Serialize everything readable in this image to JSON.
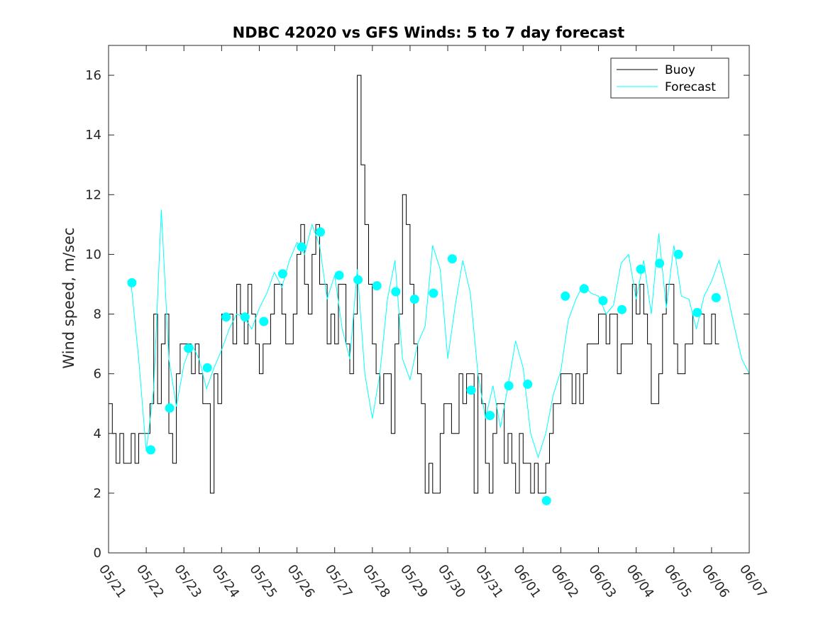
{
  "chart_data": {
    "type": "line",
    "title": "NDBC 42020 vs GFS Winds: 5 to 7 day forecast",
    "xlabel": "",
    "ylabel": "Wind speed, m/sec",
    "ylim": [
      0,
      17
    ],
    "xlim": [
      0,
      17
    ],
    "yticks": [
      0,
      2,
      4,
      6,
      8,
      10,
      12,
      14,
      16
    ],
    "xtick_labels": [
      "05/21",
      "05/22",
      "05/23",
      "05/24",
      "05/25",
      "05/26",
      "05/27",
      "05/28",
      "05/29",
      "05/30",
      "05/31",
      "06/01",
      "06/02",
      "06/03",
      "06/04",
      "06/05",
      "06/06",
      "06/07"
    ],
    "legend_position": "top-right",
    "colors": {
      "buoy": "#000000",
      "forecast": "#00ffff"
    },
    "series": [
      {
        "name": "Buoy",
        "style": "thin black line",
        "x": [
          0.0,
          0.1,
          0.2,
          0.3,
          0.4,
          0.5,
          0.6,
          0.7,
          0.8,
          0.9,
          1.0,
          1.1,
          1.2,
          1.3,
          1.4,
          1.5,
          1.6,
          1.7,
          1.8,
          1.9,
          2.0,
          2.1,
          2.2,
          2.3,
          2.4,
          2.5,
          2.6,
          2.7,
          2.8,
          2.9,
          3.0,
          3.1,
          3.2,
          3.3,
          3.4,
          3.5,
          3.6,
          3.7,
          3.8,
          3.9,
          4.0,
          4.1,
          4.2,
          4.3,
          4.4,
          4.5,
          4.6,
          4.7,
          4.8,
          4.9,
          5.0,
          5.1,
          5.2,
          5.3,
          5.4,
          5.5,
          5.6,
          5.7,
          5.8,
          5.9,
          6.0,
          6.1,
          6.2,
          6.3,
          6.4,
          6.5,
          6.6,
          6.7,
          6.8,
          6.9,
          7.0,
          7.1,
          7.2,
          7.3,
          7.4,
          7.5,
          7.6,
          7.7,
          7.8,
          7.9,
          8.0,
          8.1,
          8.2,
          8.3,
          8.4,
          8.5,
          8.6,
          8.7,
          8.8,
          8.9,
          9.0,
          9.1,
          9.2,
          9.3,
          9.4,
          9.5,
          9.6,
          9.7,
          9.8,
          9.9,
          10.0,
          10.1,
          10.2,
          10.3,
          10.4,
          10.5,
          10.6,
          10.7,
          10.8,
          10.9,
          11.0,
          11.1,
          11.2,
          11.3,
          11.4,
          11.5,
          11.6,
          11.7,
          11.8,
          11.9,
          12.0,
          12.1,
          12.2,
          12.3,
          12.4,
          12.5,
          12.6,
          12.7,
          12.8,
          12.9,
          13.0,
          13.1,
          13.2,
          13.3,
          13.4,
          13.5,
          13.6,
          13.7,
          13.8,
          13.9,
          14.0,
          14.1,
          14.2,
          14.3,
          14.4,
          14.5,
          14.6,
          14.7,
          14.8,
          14.9,
          15.0,
          15.1,
          15.2,
          15.3,
          15.4,
          15.5,
          15.6,
          15.7,
          15.8,
          15.9,
          16.0,
          16.1,
          16.2
        ],
        "y": [
          5,
          4,
          3,
          4,
          3,
          3,
          4,
          3,
          4,
          4,
          4,
          5,
          8,
          5,
          7,
          8,
          4,
          3,
          6,
          7,
          7,
          7,
          6,
          7,
          6,
          5,
          5,
          2,
          6,
          5,
          8,
          8,
          8,
          7,
          9,
          8,
          7,
          9,
          8,
          7,
          6,
          7,
          7,
          8,
          9,
          9,
          8,
          7,
          7,
          8,
          10,
          11,
          9,
          8,
          10,
          11,
          9,
          9,
          7,
          8,
          7,
          9,
          9,
          7,
          6,
          8,
          16,
          13,
          11,
          9,
          7,
          6,
          5,
          6,
          6,
          4,
          7,
          8,
          12,
          11,
          9,
          7,
          6,
          5,
          2,
          3,
          2,
          2,
          4,
          5,
          5,
          4,
          4,
          6,
          5,
          6,
          6,
          2,
          6,
          5,
          3,
          2,
          4,
          5,
          5,
          3,
          4,
          3,
          2,
          4,
          3,
          3,
          2,
          3,
          2,
          2,
          3,
          4,
          5,
          5,
          6,
          6,
          6,
          5,
          6,
          5,
          6,
          7,
          7,
          7,
          8,
          8,
          7,
          8,
          8,
          6,
          7,
          7,
          7,
          9,
          8,
          9,
          8,
          7,
          5,
          5,
          6,
          8,
          9,
          9,
          7,
          6,
          6,
          7,
          7,
          8,
          8,
          8,
          7,
          7,
          8,
          7,
          7
        ]
      },
      {
        "name": "Forecast",
        "style": "thin cyan lines",
        "x": [
          0.6,
          0.8,
          1.0,
          1.2,
          1.4,
          1.6,
          1.8,
          2.0,
          2.2,
          2.4,
          2.6,
          2.8,
          3.0,
          3.2,
          3.4,
          3.6,
          3.8,
          4.0,
          4.2,
          4.4,
          4.6,
          4.8,
          5.0,
          5.2,
          5.4,
          5.6,
          5.8,
          6.0,
          6.2,
          6.4,
          6.6,
          6.8,
          7.0,
          7.2,
          7.4,
          7.6,
          7.8,
          8.0,
          8.2,
          8.4,
          8.6,
          8.8,
          9.0,
          9.2,
          9.4,
          9.6,
          9.8,
          10.0,
          10.2,
          10.4,
          10.6,
          10.8,
          11.0,
          11.2,
          11.4,
          11.6,
          11.8,
          12.0,
          12.2,
          12.4,
          12.6,
          12.8,
          13.0,
          13.2,
          13.4,
          13.6,
          13.8,
          14.0,
          14.2,
          14.4,
          14.6,
          14.8,
          15.0,
          15.2,
          15.4,
          15.6,
          15.8,
          16.0,
          16.2,
          16.4,
          16.6,
          16.8,
          17.0
        ],
        "y": [
          9.0,
          6.5,
          3.4,
          5.5,
          11.5,
          6.5,
          4.9,
          6.3,
          7.0,
          6.5,
          5.5,
          6.2,
          6.8,
          7.5,
          8.0,
          7.9,
          7.5,
          8.2,
          8.7,
          9.4,
          8.9,
          9.8,
          10.4,
          10.0,
          11.0,
          10.3,
          8.5,
          9.3,
          7.5,
          6.5,
          9.5,
          6.0,
          4.5,
          6.0,
          8.5,
          9.8,
          6.5,
          5.8,
          7.0,
          7.6,
          10.3,
          9.5,
          6.5,
          8.3,
          9.8,
          8.7,
          6.0,
          4.5,
          5.6,
          4.2,
          5.6,
          7.1,
          6.2,
          4.0,
          3.2,
          4.0,
          5.3,
          6.1,
          7.8,
          8.5,
          9.0,
          8.7,
          8.6,
          8.0,
          8.3,
          9.7,
          10.0,
          8.5,
          9.8,
          8.0,
          10.7,
          8.2,
          10.3,
          8.6,
          8.5,
          7.5,
          8.6,
          9.1,
          9.8,
          8.8,
          7.6,
          6.5,
          6.0
        ]
      },
      {
        "name": "",
        "style": "cyan filled circles",
        "x": [
          0.62,
          1.12,
          1.62,
          2.12,
          2.62,
          3.12,
          3.62,
          4.12,
          4.62,
          5.12,
          5.62,
          6.12,
          6.62,
          7.12,
          7.62,
          8.12,
          8.62,
          9.12,
          9.62,
          10.12,
          10.62,
          11.12,
          11.62,
          12.12,
          12.62,
          13.12,
          13.62,
          14.12,
          14.62,
          15.12,
          15.62,
          16.12
        ],
        "y": [
          9.05,
          3.45,
          4.85,
          6.85,
          6.2,
          7.9,
          7.9,
          7.75,
          9.35,
          10.25,
          10.75,
          9.3,
          9.15,
          8.95,
          8.75,
          8.5,
          8.7,
          9.85,
          5.45,
          4.6,
          5.6,
          5.65,
          1.75,
          8.6,
          8.85,
          8.45,
          8.15,
          9.5,
          9.7,
          10.0,
          8.05,
          8.55
        ]
      }
    ]
  }
}
